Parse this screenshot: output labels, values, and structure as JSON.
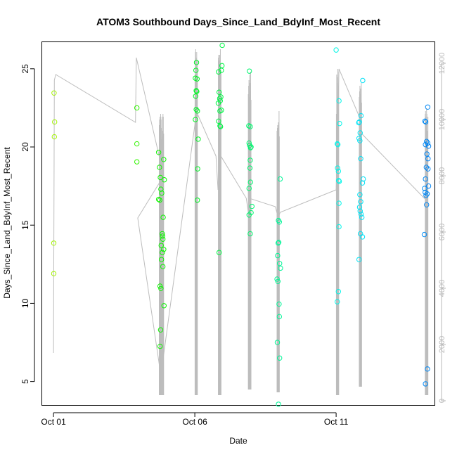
{
  "chart_data": {
    "type": "scatter",
    "title": "ATOM3 Southbound Days_Since_Land_BdyInf_Most_Recent",
    "xlabel": "Date",
    "ylabel": "Days_Since_Land_BdyInf_Most_Recent",
    "ylim": [
      3.5,
      26.7
    ],
    "y_ticks": [
      5,
      10,
      15,
      20,
      25
    ],
    "x_ticks": [
      {
        "value": 1.0,
        "label": "Oct 01"
      },
      {
        "value": 6.0,
        "label": "Oct 06"
      },
      {
        "value": 11.0,
        "label": "Oct 11"
      }
    ],
    "xlim": [
      0.6,
      14.48
    ],
    "y2_ticks": [
      0,
      2000,
      4000,
      6000,
      8000,
      10000,
      12000
    ],
    "y2lim": [
      -150,
      12750
    ],
    "color_scale": "day-of-track hue (yellow-green to blue)",
    "grid": false,
    "legend": "none",
    "points": [
      {
        "x": 1.02,
        "y": 23.45
      },
      {
        "x": 1.04,
        "y": 21.6
      },
      {
        "x": 1.03,
        "y": 20.65
      },
      {
        "x": 1.01,
        "y": 13.85
      },
      {
        "x": 1.01,
        "y": 11.9
      },
      {
        "x": 3.95,
        "y": 22.5
      },
      {
        "x": 3.95,
        "y": 20.2
      },
      {
        "x": 3.95,
        "y": 19.05
      },
      {
        "x": 4.72,
        "y": 19.65
      },
      {
        "x": 4.75,
        "y": 18.7
      },
      {
        "x": 4.78,
        "y": 18.05
      },
      {
        "x": 4.9,
        "y": 19.2
      },
      {
        "x": 4.92,
        "y": 17.9
      },
      {
        "x": 4.8,
        "y": 17.3
      },
      {
        "x": 4.83,
        "y": 17.05
      },
      {
        "x": 4.72,
        "y": 16.65
      },
      {
        "x": 4.76,
        "y": 16.6
      },
      {
        "x": 4.88,
        "y": 15.5
      },
      {
        "x": 4.85,
        "y": 14.45
      },
      {
        "x": 4.86,
        "y": 14.3
      },
      {
        "x": 4.87,
        "y": 14.1
      },
      {
        "x": 4.81,
        "y": 13.7
      },
      {
        "x": 4.9,
        "y": 13.45
      },
      {
        "x": 4.85,
        "y": 13.25
      },
      {
        "x": 4.82,
        "y": 12.8
      },
      {
        "x": 4.87,
        "y": 12.35
      },
      {
        "x": 4.77,
        "y": 11.1
      },
      {
        "x": 4.8,
        "y": 10.95
      },
      {
        "x": 4.91,
        "y": 9.85
      },
      {
        "x": 4.79,
        "y": 8.3
      },
      {
        "x": 4.77,
        "y": 7.25
      },
      {
        "x": 6.06,
        "y": 25.4
      },
      {
        "x": 6.04,
        "y": 24.9
      },
      {
        "x": 6.02,
        "y": 24.4
      },
      {
        "x": 6.08,
        "y": 24.35
      },
      {
        "x": 6.05,
        "y": 23.6
      },
      {
        "x": 6.07,
        "y": 23.55
      },
      {
        "x": 6.03,
        "y": 23.25
      },
      {
        "x": 6.05,
        "y": 22.4
      },
      {
        "x": 6.09,
        "y": 22.3
      },
      {
        "x": 6.02,
        "y": 21.75
      },
      {
        "x": 6.12,
        "y": 20.5
      },
      {
        "x": 6.1,
        "y": 18.6
      },
      {
        "x": 6.09,
        "y": 16.6
      },
      {
        "x": 6.97,
        "y": 26.5
      },
      {
        "x": 6.96,
        "y": 25.2
      },
      {
        "x": 6.94,
        "y": 24.9
      },
      {
        "x": 6.84,
        "y": 24.8
      },
      {
        "x": 6.86,
        "y": 23.5
      },
      {
        "x": 6.92,
        "y": 23.2
      },
      {
        "x": 6.88,
        "y": 23.1
      },
      {
        "x": 6.9,
        "y": 22.95
      },
      {
        "x": 6.83,
        "y": 22.8
      },
      {
        "x": 6.89,
        "y": 22.3
      },
      {
        "x": 6.94,
        "y": 22.35
      },
      {
        "x": 6.84,
        "y": 21.65
      },
      {
        "x": 6.89,
        "y": 21.35
      },
      {
        "x": 6.91,
        "y": 21.3
      },
      {
        "x": 6.86,
        "y": 13.25
      },
      {
        "x": 7.93,
        "y": 24.85
      },
      {
        "x": 7.91,
        "y": 21.35
      },
      {
        "x": 7.96,
        "y": 21.3
      },
      {
        "x": 7.92,
        "y": 20.25
      },
      {
        "x": 7.94,
        "y": 20.1
      },
      {
        "x": 7.97,
        "y": 19.95
      },
      {
        "x": 7.99,
        "y": 20.0
      },
      {
        "x": 7.96,
        "y": 19.15
      },
      {
        "x": 7.95,
        "y": 18.65
      },
      {
        "x": 7.97,
        "y": 17.75
      },
      {
        "x": 7.92,
        "y": 17.35
      },
      {
        "x": 8.02,
        "y": 16.2
      },
      {
        "x": 7.99,
        "y": 15.8
      },
      {
        "x": 7.92,
        "y": 15.65
      },
      {
        "x": 7.96,
        "y": 14.45
      },
      {
        "x": 9.02,
        "y": 17.95
      },
      {
        "x": 8.96,
        "y": 15.3
      },
      {
        "x": 8.99,
        "y": 15.2
      },
      {
        "x": 8.95,
        "y": 13.85
      },
      {
        "x": 8.97,
        "y": 13.9
      },
      {
        "x": 8.93,
        "y": 13.05
      },
      {
        "x": 9.0,
        "y": 12.55
      },
      {
        "x": 9.03,
        "y": 12.25
      },
      {
        "x": 8.91,
        "y": 11.55
      },
      {
        "x": 8.94,
        "y": 11.4
      },
      {
        "x": 8.98,
        "y": 9.95
      },
      {
        "x": 8.99,
        "y": 9.15
      },
      {
        "x": 8.92,
        "y": 7.5
      },
      {
        "x": 9.0,
        "y": 6.5
      },
      {
        "x": 8.96,
        "y": 3.55
      },
      {
        "x": 11.0,
        "y": 26.2
      },
      {
        "x": 11.1,
        "y": 22.95
      },
      {
        "x": 11.12,
        "y": 21.5
      },
      {
        "x": 11.04,
        "y": 20.2
      },
      {
        "x": 11.06,
        "y": 20.15
      },
      {
        "x": 11.05,
        "y": 18.65
      },
      {
        "x": 11.08,
        "y": 18.45
      },
      {
        "x": 11.09,
        "y": 17.85
      },
      {
        "x": 11.11,
        "y": 17.8
      },
      {
        "x": 11.1,
        "y": 16.4
      },
      {
        "x": 11.1,
        "y": 14.9
      },
      {
        "x": 11.08,
        "y": 10.75
      },
      {
        "x": 11.04,
        "y": 10.1
      },
      {
        "x": 11.94,
        "y": 24.25
      },
      {
        "x": 11.88,
        "y": 22.0
      },
      {
        "x": 11.82,
        "y": 21.6
      },
      {
        "x": 11.8,
        "y": 21.55
      },
      {
        "x": 11.85,
        "y": 20.9
      },
      {
        "x": 11.81,
        "y": 20.55
      },
      {
        "x": 11.84,
        "y": 20.4
      },
      {
        "x": 11.87,
        "y": 19.25
      },
      {
        "x": 11.96,
        "y": 17.95
      },
      {
        "x": 11.93,
        "y": 17.7
      },
      {
        "x": 11.84,
        "y": 16.95
      },
      {
        "x": 11.87,
        "y": 16.5
      },
      {
        "x": 11.83,
        "y": 16.15
      },
      {
        "x": 11.85,
        "y": 15.9
      },
      {
        "x": 11.88,
        "y": 15.7
      },
      {
        "x": 11.91,
        "y": 15.5
      },
      {
        "x": 11.86,
        "y": 14.45
      },
      {
        "x": 11.93,
        "y": 14.25
      },
      {
        "x": 11.81,
        "y": 12.8
      },
      {
        "x": 14.24,
        "y": 22.55
      },
      {
        "x": 14.14,
        "y": 21.65
      },
      {
        "x": 14.17,
        "y": 21.6
      },
      {
        "x": 14.2,
        "y": 20.35
      },
      {
        "x": 14.24,
        "y": 20.25
      },
      {
        "x": 14.27,
        "y": 20.05
      },
      {
        "x": 14.16,
        "y": 20.15
      },
      {
        "x": 14.21,
        "y": 19.55
      },
      {
        "x": 14.25,
        "y": 19.25
      },
      {
        "x": 14.19,
        "y": 18.7
      },
      {
        "x": 14.25,
        "y": 18.6
      },
      {
        "x": 14.16,
        "y": 17.95
      },
      {
        "x": 14.13,
        "y": 17.35
      },
      {
        "x": 14.15,
        "y": 17.1
      },
      {
        "x": 14.22,
        "y": 17.0
      },
      {
        "x": 14.27,
        "y": 17.5
      },
      {
        "x": 14.18,
        "y": 16.9
      },
      {
        "x": 14.2,
        "y": 16.3
      },
      {
        "x": 14.12,
        "y": 14.4
      },
      {
        "x": 14.23,
        "y": 5.8
      },
      {
        "x": 14.16,
        "y": 4.85
      }
    ],
    "secondary_series": [
      {
        "x": 1.0,
        "y2": 1700
      },
      {
        "x": 1.03,
        "y2": 11400
      },
      {
        "x": 1.08,
        "y2": 11600
      },
      {
        "x": 3.9,
        "y2": 9900
      },
      {
        "x": 3.93,
        "y2": 12200
      },
      {
        "x": 4.9,
        "y2": 8000
      },
      {
        "x": 3.98,
        "y2": 6500
      },
      {
        "x": 4.8,
        "y2": 900
      },
      {
        "x": 6.0,
        "y2": 9800
      },
      {
        "x": 6.05,
        "y2": 10300
      },
      {
        "x": 6.75,
        "y2": 8700
      },
      {
        "x": 6.82,
        "y2": 7500
      },
      {
        "x": 6.92,
        "y2": 8700
      },
      {
        "x": 7.82,
        "y2": 7200
      },
      {
        "x": 7.92,
        "y2": 6500
      },
      {
        "x": 7.93,
        "y2": 7200
      },
      {
        "x": 8.85,
        "y2": 6900
      },
      {
        "x": 8.95,
        "y2": 6500
      },
      {
        "x": 9.02,
        "y2": 6700
      },
      {
        "x": 11.0,
        "y2": 7500
      },
      {
        "x": 11.1,
        "y2": 11800
      },
      {
        "x": 11.82,
        "y2": 10100
      },
      {
        "x": 11.9,
        "y2": 9500
      },
      {
        "x": 14.12,
        "y2": 7200
      },
      {
        "x": 14.22,
        "y2": 7500
      }
    ],
    "spike_groups": [
      {
        "x_center": 4.82,
        "base": 200,
        "tops": [
          9800,
          10000,
          10100,
          9900,
          10200,
          10000,
          9700,
          9300,
          10100,
          9400,
          9600,
          10200,
          10100,
          9500
        ]
      },
      {
        "x_center": 6.05,
        "base": 200,
        "tops": [
          11600,
          12400,
          12500,
          12200,
          11900,
          12400,
          11700,
          12100
        ]
      },
      {
        "x_center": 6.88,
        "base": 200,
        "tops": [
          12200,
          12300,
          11900,
          12100,
          12300,
          11800,
          12500,
          12000,
          11700
        ]
      },
      {
        "x_center": 7.94,
        "base": 400,
        "tops": [
          10900,
          11200,
          11400,
          10800,
          11600,
          11000,
          11300,
          11700,
          10700
        ]
      },
      {
        "x_center": 8.95,
        "base": 300,
        "tops": [
          9600,
          9700,
          9800,
          9600,
          9900,
          9700,
          10300,
          9400
        ]
      },
      {
        "x_center": 11.05,
        "base": 200,
        "tops": [
          10200,
          11600,
          11500,
          11300,
          11800,
          10800,
          10400,
          11700
        ]
      },
      {
        "x_center": 11.86,
        "base": 500,
        "tops": [
          10800,
          11000,
          11200,
          10900,
          11100,
          10700,
          11300,
          10600
        ]
      },
      {
        "x_center": 14.2,
        "base": 200,
        "tops": [
          10200,
          10300,
          10100,
          9900,
          10400,
          10200,
          9600,
          9200,
          10100
        ]
      }
    ]
  }
}
